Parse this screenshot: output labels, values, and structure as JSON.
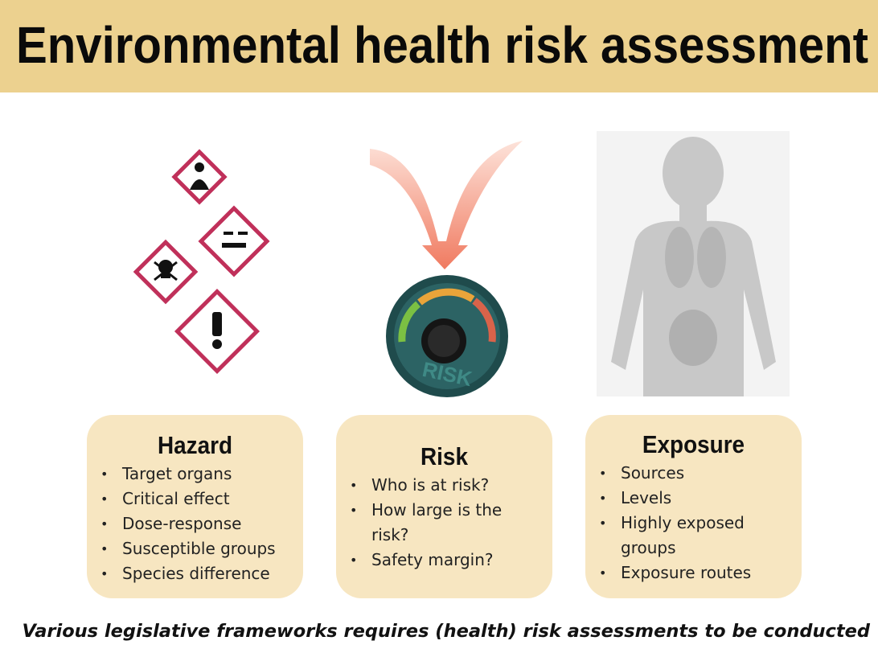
{
  "header": {
    "title": "Environmental health risk assessment"
  },
  "panels": [
    {
      "title": "Hazard",
      "items": [
        "Target organs",
        "Critical effect",
        "Dose-response",
        "Susceptible groups",
        "Species difference"
      ]
    },
    {
      "title": "Risk",
      "items": [
        "Who is at risk?",
        "How large is the risk?",
        "Safety margin?"
      ]
    },
    {
      "title": "Exposure",
      "items": [
        "Sources",
        "Levels",
        "Highly exposed groups",
        "Exposure routes"
      ]
    }
  ],
  "gauge_label": "RISK",
  "footer": "Various legislative frameworks requires (health) risk assessments to be conducted"
}
